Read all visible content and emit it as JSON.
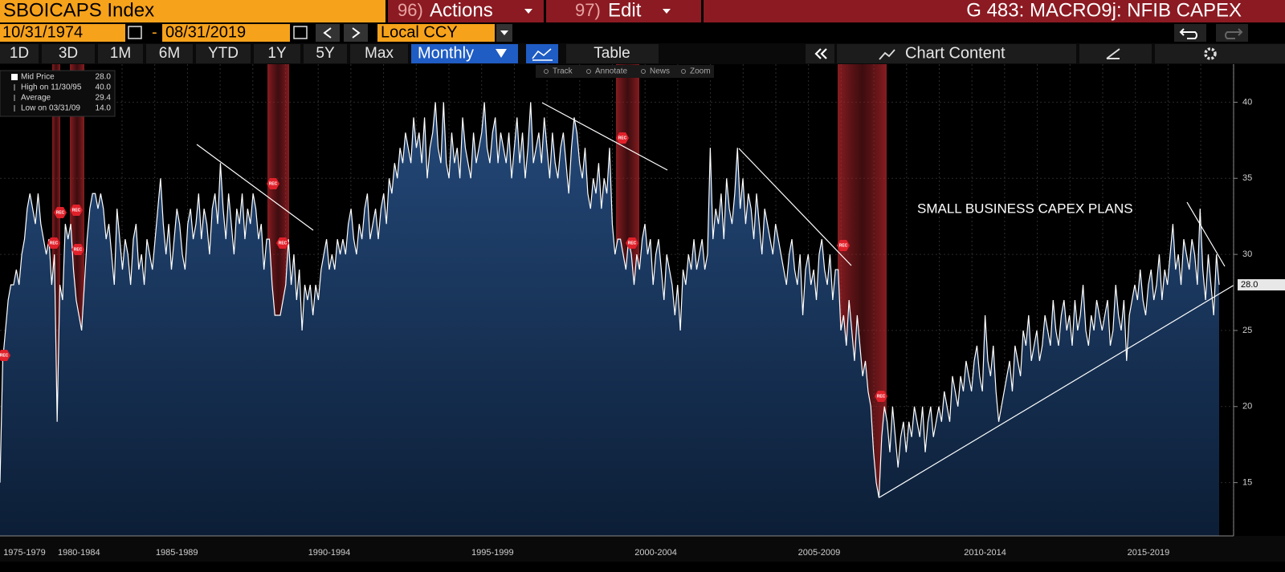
{
  "header": {
    "security": "SBOICAPS Index",
    "menus": [
      {
        "num": "96)",
        "label": "Actions"
      },
      {
        "num": "97)",
        "label": "Edit"
      }
    ],
    "title": "G 483: MACRO9j: NFIB CAPEX"
  },
  "controls": {
    "start_date": "10/31/1974",
    "separator": "-",
    "end_date": "08/31/2019",
    "currency": "Local CCY",
    "periods": [
      "1D",
      "3D",
      "1M",
      "6M",
      "YTD",
      "1Y",
      "5Y",
      "Max"
    ],
    "frequency": "Monthly",
    "table": "Table",
    "chart_content": "Chart Content"
  },
  "toolbar": [
    "Track",
    "Annotate",
    "News",
    "Zoom"
  ],
  "chart_data": {
    "type": "area",
    "annotation": "SMALL BUSINESS CAPEX PLANS",
    "rec_label": "REC",
    "legend": [
      {
        "label": "Mid Price",
        "value": "28.0"
      },
      {
        "label": "High on 11/30/95",
        "value": "40.0"
      },
      {
        "label": "Average",
        "value": "29.4"
      },
      {
        "label": "Low on 03/31/09",
        "value": "14.0"
      }
    ],
    "last_value_label": "28.0",
    "color": "#ffffff",
    "fill_color": "#1b3a5c",
    "ylim": [
      11.5,
      42.5
    ],
    "yticks": [
      15,
      20,
      25,
      30,
      35,
      40
    ],
    "grid": true,
    "categories": [
      null,
      null,
      null,
      null,
      null,
      null,
      null,
      null,
      null,
      "1975-1979",
      null,
      null,
      null,
      null,
      null,
      null,
      null,
      null,
      null,
      null,
      null,
      null,
      null,
      null,
      null,
      null,
      null,
      null,
      null,
      "1980-1984",
      null,
      null,
      null,
      null,
      null,
      null,
      null,
      null,
      null,
      null,
      null,
      null,
      null,
      null,
      null,
      null,
      null,
      null,
      null,
      null,
      null,
      null,
      null,
      null,
      null,
      null,
      null,
      null,
      null,
      null,
      null,
      null,
      null,
      null,
      null,
      "1985-1989",
      null,
      null,
      null,
      null,
      null,
      null,
      null,
      null,
      null,
      null,
      null,
      null,
      null,
      null,
      null,
      null,
      null,
      null,
      null,
      null,
      null,
      null,
      null,
      null,
      null,
      null,
      null,
      null,
      null,
      null,
      null,
      null,
      null,
      null,
      null,
      null,
      null,
      null,
      null,
      null,
      null,
      null,
      null,
      null,
      null,
      null,
      null,
      null,
      null,
      null,
      null,
      null,
      null,
      null,
      null,
      "1990-1994",
      null,
      null,
      null,
      null,
      null,
      null,
      null,
      null,
      null,
      null,
      null,
      null,
      null,
      null,
      null,
      null,
      null,
      null,
      null,
      null,
      null,
      null,
      null,
      null,
      null,
      null,
      null,
      null,
      null,
      null,
      null,
      null,
      null,
      null,
      null,
      null,
      null,
      null,
      null,
      null,
      null,
      null,
      null,
      null,
      null,
      null,
      null,
      null,
      null,
      null,
      null,
      null,
      null,
      null,
      null,
      null,
      null,
      null,
      null,
      "1995-1999",
      null,
      null,
      null,
      null,
      null,
      null,
      null,
      null,
      null,
      null,
      null,
      null,
      null,
      null,
      null,
      null,
      null,
      null,
      null,
      null,
      null,
      null,
      null,
      null,
      null,
      null,
      null,
      null,
      null,
      null,
      null,
      null,
      null,
      null,
      null,
      null,
      null,
      null,
      null,
      null,
      null,
      null,
      null,
      null,
      null,
      null,
      null,
      null,
      null,
      null,
      null,
      null,
      null,
      null,
      null,
      null,
      null,
      null,
      null,
      "2000-2004",
      null,
      null,
      null,
      null,
      null,
      null,
      null,
      null,
      null,
      null,
      null,
      null,
      null,
      null,
      null,
      null,
      null,
      null,
      null,
      null,
      null,
      null,
      null,
      null,
      null,
      null,
      null,
      null,
      null,
      null,
      null,
      null,
      null,
      null,
      null,
      null,
      null,
      null,
      null,
      null,
      null,
      null,
      null,
      null,
      null,
      null,
      null,
      null,
      null,
      null,
      null,
      null,
      null,
      null,
      null,
      null,
      null,
      null,
      null,
      "2005-2009",
      null,
      null,
      null,
      null,
      null,
      null,
      null,
      null,
      null,
      null,
      null,
      null,
      null,
      null,
      null,
      null,
      null,
      null,
      null,
      null,
      null,
      null,
      null,
      null,
      null,
      null,
      null,
      null,
      null,
      null,
      null,
      null,
      null,
      null,
      null,
      null,
      null,
      null,
      null,
      null,
      null,
      null,
      null,
      null,
      null,
      null,
      null,
      null,
      null,
      null,
      null,
      null,
      null,
      null,
      null,
      null,
      null,
      null,
      null,
      null,
      "2010-2014",
      null,
      null,
      null,
      null,
      null,
      null,
      null,
      null,
      null,
      null,
      null,
      null,
      null,
      null,
      null,
      null,
      null,
      null,
      null,
      null,
      null,
      null,
      null,
      null,
      null,
      null,
      null,
      null,
      null,
      null,
      null,
      null,
      null,
      null,
      null,
      null,
      null,
      null,
      null,
      null,
      null,
      null,
      null,
      null,
      null,
      null,
      null,
      null,
      null,
      null,
      null,
      null,
      null,
      null,
      null,
      null,
      null,
      null,
      null,
      "2015-2019",
      null,
      null,
      null,
      null,
      null,
      null,
      null,
      null,
      null,
      null,
      null,
      null,
      null,
      null,
      null,
      null,
      null,
      null,
      null,
      null,
      null,
      null,
      null,
      null,
      null,
      null
    ],
    "values": [
      15,
      23,
      25,
      27,
      28,
      28,
      29,
      28,
      30,
      31,
      33,
      34,
      33,
      32,
      34,
      32,
      31,
      30,
      31,
      28,
      30,
      19,
      28,
      27,
      32,
      31,
      32,
      29,
      27,
      26,
      25,
      28,
      31,
      33,
      34,
      34,
      33,
      34,
      33,
      31,
      32,
      30,
      28,
      33,
      31,
      29,
      31,
      30,
      28,
      31,
      32,
      29,
      30,
      28,
      31,
      30,
      29,
      31,
      33,
      35,
      32,
      30,
      32,
      29,
      31,
      33,
      32,
      30,
      29,
      32,
      33,
      31,
      32,
      34,
      31,
      33,
      32,
      30,
      33,
      34,
      32,
      36,
      33,
      31,
      34,
      32,
      30,
      33,
      32,
      34,
      31,
      33,
      32,
      34,
      33,
      31,
      32,
      29,
      31,
      31,
      28,
      26,
      26,
      26,
      27,
      28,
      31,
      28,
      30,
      27,
      29,
      25,
      28,
      27,
      28,
      26,
      28,
      27,
      29,
      30,
      31,
      29,
      30,
      29,
      31,
      30,
      31,
      30,
      32,
      33,
      31,
      30,
      32,
      31,
      33,
      34,
      31,
      32,
      33,
      31,
      33,
      34,
      32,
      35,
      34,
      36,
      35,
      37,
      36,
      38,
      37,
      36,
      39,
      37,
      38,
      36,
      39,
      35,
      37,
      38,
      40,
      37,
      36,
      40,
      36,
      35,
      38,
      36,
      37,
      35,
      39,
      37,
      36,
      35,
      38,
      36,
      37,
      38,
      40,
      37,
      36,
      38,
      39,
      36,
      38,
      37,
      36,
      38,
      35,
      37,
      39,
      36,
      38,
      35,
      37,
      40,
      36,
      37,
      38,
      36,
      39,
      37,
      35,
      38,
      36,
      35,
      37,
      38,
      36,
      34,
      37,
      39,
      38,
      36,
      35,
      37,
      34,
      33,
      35,
      34,
      36,
      33,
      35,
      34,
      37,
      32,
      30,
      31,
      31,
      30,
      29,
      31,
      30,
      28,
      30,
      29,
      31,
      32,
      30,
      31,
      28,
      30,
      31,
      29,
      27,
      30,
      29,
      28,
      26,
      28,
      25,
      29,
      28,
      30,
      29,
      31,
      29,
      30,
      31,
      29,
      30,
      37,
      31,
      33,
      32,
      34,
      31,
      35,
      33,
      32,
      34,
      37,
      33,
      35,
      32,
      34,
      33,
      31,
      34,
      32,
      30,
      33,
      32,
      31,
      30,
      32,
      31,
      30,
      29,
      28,
      30,
      31,
      29,
      28,
      30,
      26,
      29,
      30,
      28,
      29,
      27,
      30,
      31,
      29,
      28,
      30,
      27,
      29,
      29,
      25,
      26,
      24,
      27,
      25,
      23,
      26,
      24,
      22,
      23,
      21,
      20,
      17,
      15,
      14,
      18,
      20,
      19,
      17,
      20,
      18,
      16,
      18,
      19,
      17,
      19,
      18,
      20,
      19,
      18,
      20,
      17,
      19,
      20,
      18,
      19,
      20,
      19,
      21,
      20,
      19,
      22,
      21,
      20,
      22,
      21,
      23,
      22,
      21,
      23,
      24,
      22,
      21,
      26,
      23,
      22,
      24,
      21,
      19,
      20,
      21,
      22,
      23,
      21,
      24,
      23,
      22,
      25,
      24,
      26,
      23,
      24,
      25,
      23,
      24,
      26,
      25,
      24,
      27,
      25,
      24,
      26,
      27,
      25,
      26,
      24,
      27,
      25,
      26,
      28,
      25,
      24,
      26,
      25,
      27,
      26,
      25,
      26,
      27,
      24,
      25,
      28,
      26,
      25,
      27,
      23,
      26,
      27,
      28,
      27,
      29,
      27,
      26,
      28,
      29,
      27,
      28,
      30,
      27,
      29,
      28,
      30,
      32,
      29,
      30,
      28,
      31,
      30,
      29,
      31,
      30,
      28,
      33,
      29,
      27,
      30,
      28,
      26,
      30,
      28
    ]
  }
}
